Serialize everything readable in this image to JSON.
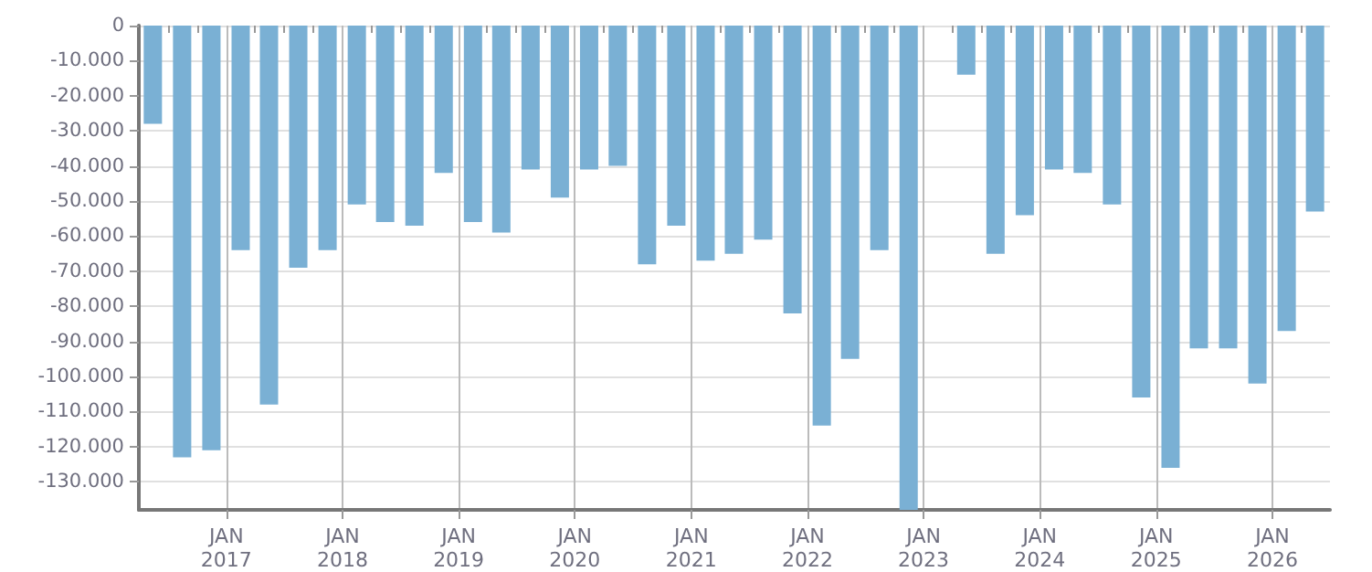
{
  "chart_data": {
    "type": "bar",
    "color": "#7ab0d4",
    "x": [
      "2016-05-15",
      "2016-08-15",
      "2016-11-15",
      "2017-02-15",
      "2017-05-15",
      "2017-08-15",
      "2017-11-15",
      "2018-02-15",
      "2018-05-15",
      "2018-08-15",
      "2018-11-15",
      "2019-02-15",
      "2019-05-15",
      "2019-08-15",
      "2019-11-15",
      "2020-02-15",
      "2020-05-15",
      "2020-08-15",
      "2020-11-15",
      "2021-02-15",
      "2021-05-15",
      "2021-08-15",
      "2021-11-15",
      "2022-02-15",
      "2022-05-15",
      "2022-08-15",
      "2022-11-15",
      "2023-02-15",
      "2023-05-15",
      "2023-08-15",
      "2023-11-15",
      "2024-02-15",
      "2024-05-15",
      "2024-08-15",
      "2024-11-15",
      "2025-02-15",
      "2025-05-15",
      "2025-08-15",
      "2025-11-15",
      "2026-02-15",
      "2026-05-15"
    ],
    "values": [
      -28000,
      -123000,
      -121000,
      -64000,
      -108000,
      -69000,
      -64000,
      -51000,
      -56000,
      -57000,
      -42000,
      -56000,
      -59000,
      -41000,
      -49000,
      -41000,
      -40000,
      -68000,
      -57000,
      -67000,
      -65000,
      -61000,
      -82000,
      -114000,
      -95000,
      -64000,
      -138000,
      null,
      -14000,
      -65000,
      -54000,
      -41000,
      -42000,
      -51000,
      -106000,
      -126000,
      -92000,
      -92000,
      -102000,
      -87000,
      -53000
    ],
    "xlim": [
      "2016-04-01",
      "2026-07-01"
    ],
    "xticks": [
      {
        "value": "2016-07-01",
        "label": null
      },
      {
        "value": "2016-10-01",
        "label": null
      },
      {
        "value": "2017-01-01",
        "label": "JAN\n2017"
      },
      {
        "value": "2017-04-01",
        "label": null
      },
      {
        "value": "2017-07-01",
        "label": null
      },
      {
        "value": "2017-10-01",
        "label": null
      },
      {
        "value": "2018-01-01",
        "label": "JAN\n2018"
      },
      {
        "value": "2018-04-01",
        "label": null
      },
      {
        "value": "2018-07-01",
        "label": null
      },
      {
        "value": "2018-10-01",
        "label": null
      },
      {
        "value": "2019-01-01",
        "label": "JAN\n2019"
      },
      {
        "value": "2019-04-01",
        "label": null
      },
      {
        "value": "2019-07-01",
        "label": null
      },
      {
        "value": "2019-10-01",
        "label": null
      },
      {
        "value": "2020-01-01",
        "label": "JAN\n2020"
      },
      {
        "value": "2020-04-01",
        "label": null
      },
      {
        "value": "2020-07-01",
        "label": null
      },
      {
        "value": "2020-10-01",
        "label": null
      },
      {
        "value": "2021-01-01",
        "label": "JAN\n2021"
      },
      {
        "value": "2021-04-01",
        "label": null
      },
      {
        "value": "2021-07-01",
        "label": null
      },
      {
        "value": "2021-10-01",
        "label": null
      },
      {
        "value": "2022-01-01",
        "label": "JAN\n2022"
      },
      {
        "value": "2022-04-01",
        "label": null
      },
      {
        "value": "2022-07-01",
        "label": null
      },
      {
        "value": "2022-10-01",
        "label": null
      },
      {
        "value": "2023-01-01",
        "label": "JAN\n2023"
      },
      {
        "value": "2023-04-01",
        "label": null
      },
      {
        "value": "2023-07-01",
        "label": null
      },
      {
        "value": "2023-10-01",
        "label": null
      },
      {
        "value": "2024-01-01",
        "label": "JAN\n2024"
      },
      {
        "value": "2024-04-01",
        "label": null
      },
      {
        "value": "2024-07-01",
        "label": null
      },
      {
        "value": "2024-10-01",
        "label": null
      },
      {
        "value": "2025-01-01",
        "label": "JAN\n2025"
      },
      {
        "value": "2025-04-01",
        "label": null
      },
      {
        "value": "2025-07-01",
        "label": null
      },
      {
        "value": "2025-10-01",
        "label": null
      },
      {
        "value": "2026-01-01",
        "label": "JAN\n2026"
      },
      {
        "value": "2026-04-01",
        "label": null
      }
    ],
    "ylim": [
      -138000,
      0
    ],
    "yticks": [
      {
        "value": 0,
        "label": "0"
      },
      {
        "value": -10000,
        "label": "-10.000"
      },
      {
        "value": -20000,
        "label": "-20.000"
      },
      {
        "value": -30000,
        "label": "-30.000"
      },
      {
        "value": -40000,
        "label": "-40.000"
      },
      {
        "value": -50000,
        "label": "-50.000"
      },
      {
        "value": -60000,
        "label": "-60.000"
      },
      {
        "value": -70000,
        "label": "-70.000"
      },
      {
        "value": -80000,
        "label": "-80.000"
      },
      {
        "value": -90000,
        "label": "-90.000"
      },
      {
        "value": -100000,
        "label": "-100.000"
      },
      {
        "value": -110000,
        "label": "-110.000"
      },
      {
        "value": -120000,
        "label": "-120.000"
      },
      {
        "value": -130000,
        "label": "-130.000"
      }
    ],
    "grid": true
  }
}
